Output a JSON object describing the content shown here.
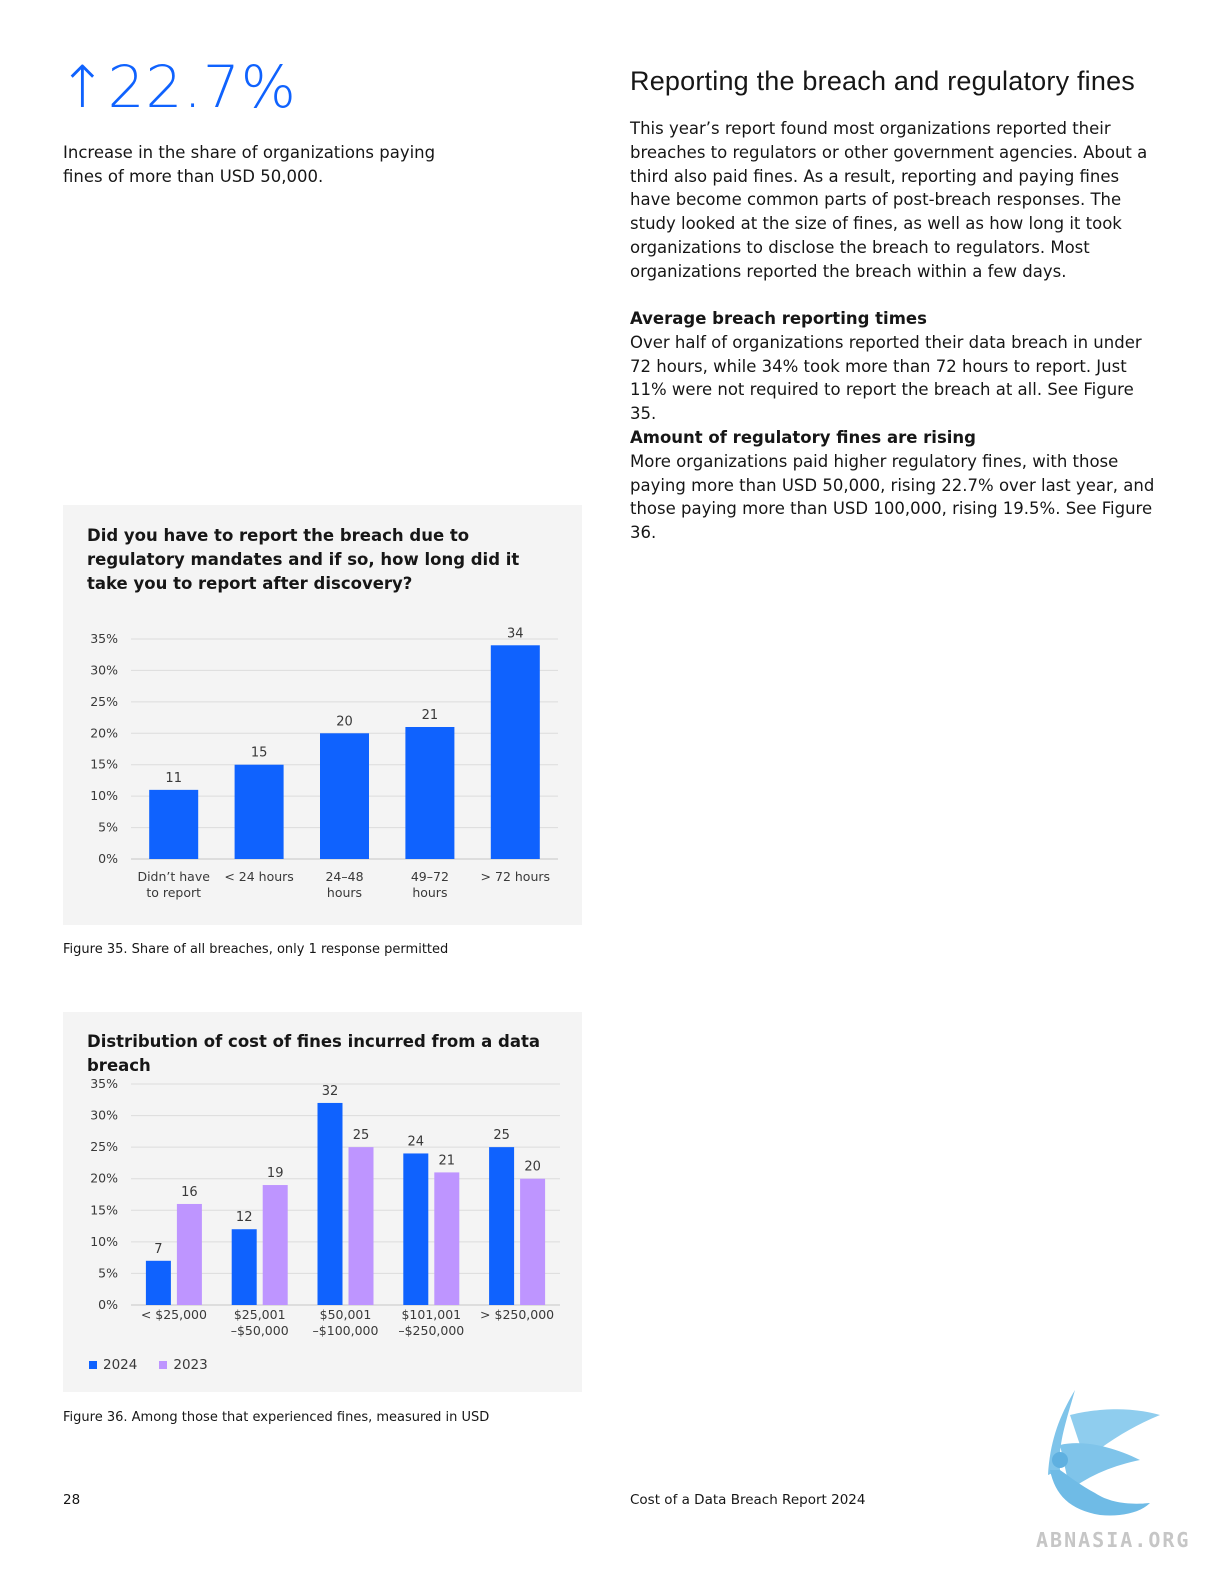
{
  "highlight": {
    "arrow": "↑",
    "value": "22.7%",
    "description": "Increase in the share of organizations paying fines of more than USD 50,000."
  },
  "section": {
    "title": "Reporting the breach and regulatory fines",
    "intro": "This year’s report found most organizations reported their breaches to regulators or other government agencies. About a third also paid fines. As a result, reporting and paying fines have become common parts of post-breach responses. The study looked at the size of fines, as well as how long it took organizations to disclose the breach to regulators. Most organizations reported the breach within a few days.",
    "sub1_title": "Average breach reporting times",
    "sub1_body": "Over half of organizations reported their data breach in under 72 hours, while 34% took more than 72 hours to report. Just 11% were not required to report the breach at all. See Figure 35.",
    "sub2_title": "Amount of regulatory fines are rising",
    "sub2_body": "More organizations paid higher regulatory fines, with those paying more than USD 50,000, rising 22.7% over last year, and those paying more than USD 100,000, rising 19.5%. See Figure 36."
  },
  "chart_data": [
    {
      "type": "bar",
      "title": "Did you have to report the breach due to regulatory mandates and if so, how long did it take you to report after discovery?",
      "categories": [
        [
          "Didn’t have",
          "to report"
        ],
        [
          "< 24 hours"
        ],
        [
          "24–48",
          "hours"
        ],
        [
          "49–72",
          "hours"
        ],
        [
          "> 72 hours"
        ]
      ],
      "series": [
        {
          "values": [
            11,
            15,
            20,
            21,
            34
          ],
          "color": "#0f62fe"
        }
      ],
      "yticks": [
        "0%",
        "5%",
        "10%",
        "15%",
        "20%",
        "25%",
        "30%",
        "35%"
      ],
      "ylim": [
        0,
        35
      ],
      "grid": true,
      "caption": "Figure 35. Share of all breaches, only 1 response permitted"
    },
    {
      "type": "bar",
      "title": "Distribution of cost of fines incurred from a data breach",
      "categories": [
        [
          "< $25,000"
        ],
        [
          "$25,001",
          "–$50,000"
        ],
        [
          "$50,001",
          "–$100,000"
        ],
        [
          "$101,001",
          "–$250,000"
        ],
        [
          "> $250,000"
        ]
      ],
      "series": [
        {
          "name": "2024",
          "values": [
            7,
            12,
            32,
            24,
            25
          ],
          "color": "#0f62fe"
        },
        {
          "name": "2023",
          "values": [
            16,
            19,
            25,
            21,
            20
          ],
          "color": "#be95ff"
        }
      ],
      "yticks": [
        "0%",
        "5%",
        "10%",
        "15%",
        "20%",
        "25%",
        "30%",
        "35%"
      ],
      "ylim": [
        0,
        35
      ],
      "grid": true,
      "legend": "bottom-left",
      "caption": "Figure 36. Among those that experienced fines, measured in USD"
    }
  ],
  "footer": {
    "page_number": "28",
    "report_title": "Cost of a Data Breach Report 2024"
  },
  "watermark": {
    "text": "ABNASIA.ORG",
    "icon": "griffin-logo-icon"
  }
}
